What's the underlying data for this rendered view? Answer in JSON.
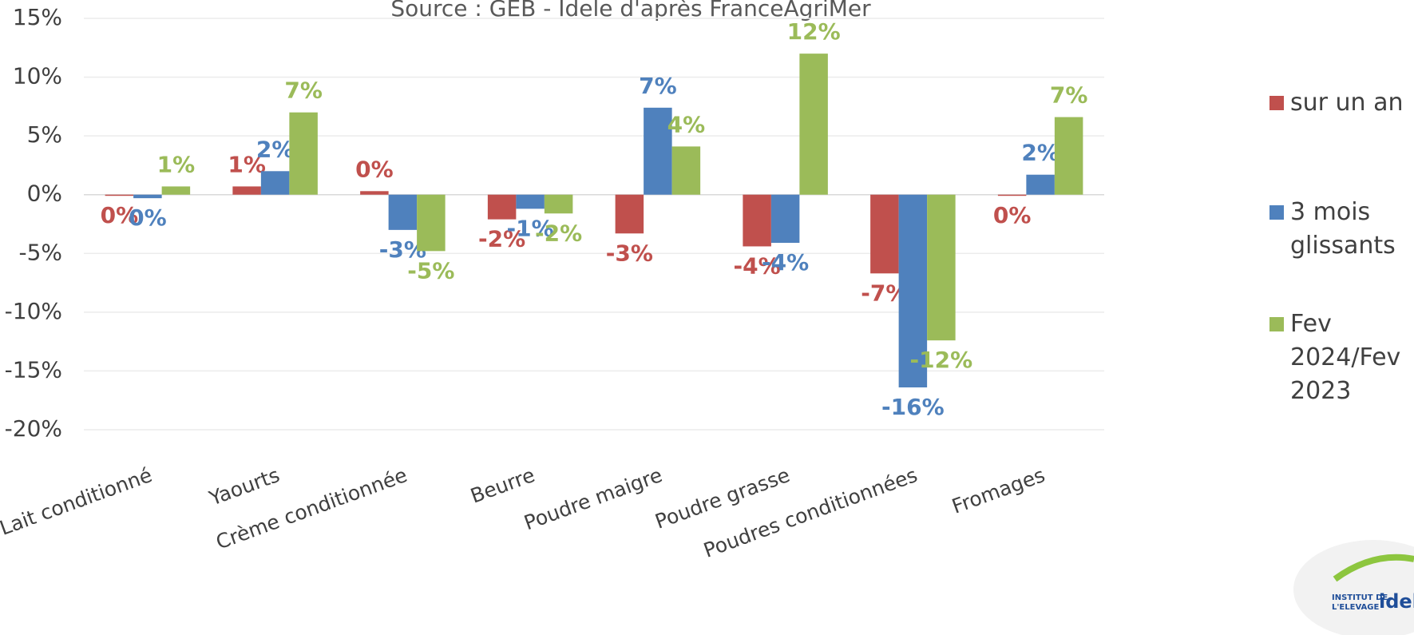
{
  "chart_data": {
    "type": "bar",
    "subtitle": "Source : GEB - Idele d'après FranceAgriMer",
    "categories": [
      "Lait conditionné",
      "Yaourts",
      "Crème conditionnée",
      "Beurre",
      "Poudre maigre",
      "Poudre grasse",
      "Poudres conditionnées",
      "Fromages"
    ],
    "series": [
      {
        "name": "sur un an",
        "color": "#c0504d",
        "values": [
          -0.1,
          0.7,
          0.3,
          -2.1,
          -3.3,
          -4.4,
          -6.7,
          -0.1
        ],
        "value_labels": [
          "0%",
          "1%",
          "0%",
          "-2%",
          "-3%",
          "-4%",
          "-7%",
          "0%"
        ]
      },
      {
        "name": "3 mois glissants",
        "color": "#4f81bd",
        "values": [
          -0.3,
          2.0,
          -3.0,
          -1.2,
          7.4,
          -4.1,
          -16.4,
          1.7
        ],
        "value_labels": [
          "0%",
          "2%",
          "-3%",
          "-1%",
          "7%",
          "-4%",
          "-16%",
          "2%"
        ]
      },
      {
        "name": "Fev 2024/Fev 2023",
        "color": "#9bbb59",
        "values": [
          0.7,
          7.0,
          -4.8,
          -1.6,
          4.1,
          12.0,
          -12.4,
          6.6
        ],
        "value_labels": [
          "1%",
          "7%",
          "-5%",
          "-2%",
          "4%",
          "12%",
          "-12%",
          "7%"
        ]
      }
    ],
    "ylim": [
      -20,
      15
    ],
    "yticks": [
      {
        "value": -20,
        "label": "-20%"
      },
      {
        "value": -15,
        "label": "-15%"
      },
      {
        "value": -10,
        "label": "-10%"
      },
      {
        "value": -5,
        "label": "-5%"
      },
      {
        "value": 0,
        "label": "0%"
      },
      {
        "value": 5,
        "label": "5%"
      },
      {
        "value": 10,
        "label": "10%"
      },
      {
        "value": 15,
        "label": "15%"
      }
    ],
    "grid": true,
    "legend": "right"
  },
  "logo": {
    "line1": "INSTITUT DE",
    "line2": "L'ELEVAGE",
    "brand": "idele"
  }
}
